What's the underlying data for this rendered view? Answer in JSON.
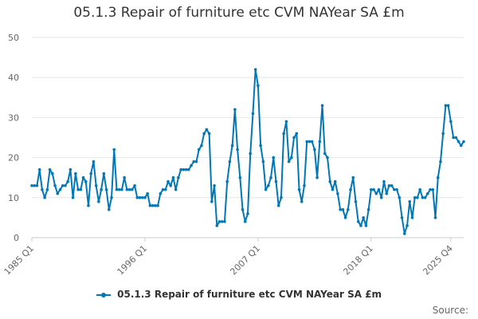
{
  "chart_data": {
    "type": "line",
    "title": "05.1.3 Repair of furniture etc CVM NAYear SA £m",
    "xlabel": "",
    "ylabel": "",
    "ylim": [
      0,
      50
    ],
    "yticks": [
      0,
      10,
      20,
      30,
      40,
      50
    ],
    "xtick_labels": [
      "1985 Q1",
      "1996 Q1",
      "2007 Q1",
      "2018 Q1",
      "2025 Q4"
    ],
    "x_start": "1985 Q1",
    "x_end": "2025 Q4",
    "grid": "horizontal",
    "legend_position": "bottom",
    "source_label": "Source:",
    "series": [
      {
        "name": "05.1.3 Repair of furniture etc CVM NAYear SA £m",
        "color": "#0077b6",
        "values": [
          13,
          13,
          13,
          17,
          12,
          10,
          12,
          17,
          16,
          13,
          11,
          12,
          13,
          13,
          14,
          17,
          10,
          16,
          12,
          12,
          15,
          14,
          8,
          16,
          19,
          13,
          9,
          12,
          16,
          12,
          7,
          10,
          22,
          12,
          12,
          12,
          15,
          12,
          12,
          12,
          13,
          10,
          10,
          10,
          10,
          11,
          8,
          8,
          8,
          8,
          11,
          12,
          12,
          14,
          13,
          15,
          12,
          15,
          17,
          17,
          17,
          17,
          18,
          19,
          19,
          22,
          23,
          26,
          27,
          26,
          9,
          13,
          3,
          4,
          4,
          4,
          14,
          19,
          23,
          32,
          22,
          15,
          7,
          4,
          6,
          21,
          31,
          42,
          38,
          23,
          19,
          12,
          13,
          15,
          20,
          14,
          8,
          10,
          26,
          29,
          19,
          20,
          25,
          26,
          12,
          9,
          13,
          24,
          24,
          24,
          22,
          15,
          24,
          33,
          21,
          20,
          14,
          12,
          14,
          11,
          7,
          7,
          5,
          7,
          12,
          15,
          9,
          4,
          3,
          5,
          3,
          7,
          12,
          12,
          11,
          12,
          10,
          14,
          11,
          13,
          13,
          12,
          12,
          10,
          5,
          1,
          3,
          9,
          5,
          10,
          10,
          12,
          10,
          10,
          11,
          12,
          12,
          5,
          15,
          19,
          26,
          33,
          33,
          29,
          25,
          25,
          24,
          23,
          24
        ]
      }
    ]
  }
}
